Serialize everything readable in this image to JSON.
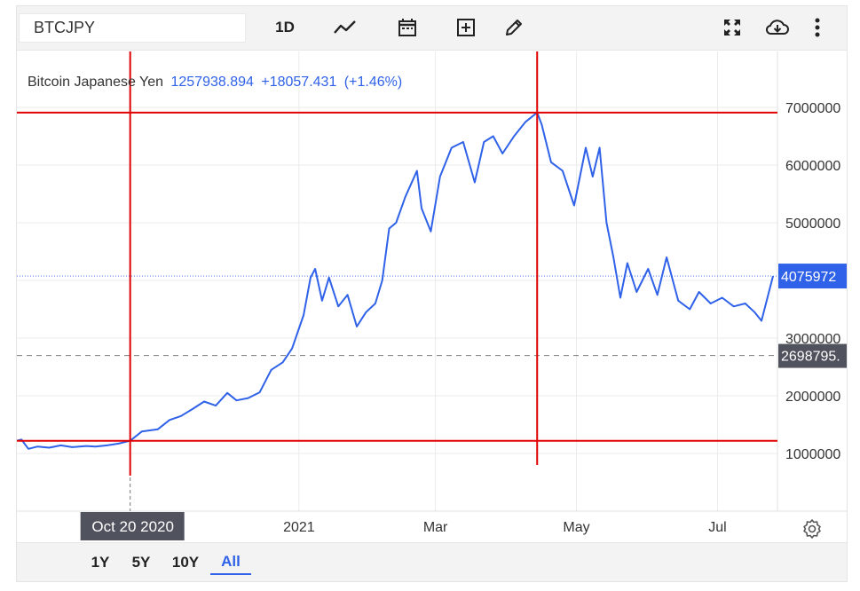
{
  "toolbar": {
    "symbol": "BTCJPY",
    "interval_label": "1D",
    "icons": [
      "line-chart-icon",
      "calendar-icon",
      "add-box-icon",
      "pencil-icon",
      "fullscreen-icon",
      "cloud-download-icon",
      "more-vertical-icon"
    ]
  },
  "legend": {
    "name": "Bitcoin Japanese Yen",
    "price": "1257938.894",
    "change": "+18057.431",
    "change_pct": "(+1.46%)"
  },
  "range_bar": {
    "buttons": [
      "1Y",
      "5Y",
      "10Y",
      "All"
    ],
    "active": "All"
  },
  "colors": {
    "series": "#2f62e8",
    "crosshair": "#e00000",
    "last_label_bg": "#2f62e8",
    "ref_label_bg": "#50535e"
  },
  "chart_data": {
    "type": "line",
    "y_ticks": [
      1000000,
      2000000,
      3000000,
      4000000,
      5000000,
      6000000,
      7000000
    ],
    "y_tick_labels": [
      "1000000",
      "2000000",
      "3000000",
      "4000000",
      "5000000",
      "6000000",
      "7000000"
    ],
    "ylim": [
      0,
      8000000
    ],
    "x_tick_labels": [
      "2021",
      "Mar",
      "May",
      "Jul"
    ],
    "x_ticks": [
      "2021-01-01",
      "2021-03-01",
      "2021-05-01",
      "2021-07-01"
    ],
    "xlim": [
      "2020-09-01",
      "2021-07-25"
    ],
    "crosshair_date_label": "Oct 20 2020",
    "crosshair_date": "2020-10-20",
    "last_value_label": "4075972",
    "last_value": 4075972,
    "ref_value_label": "2698795.",
    "ref_value": 2698795,
    "hlines": [
      1220000,
      6910000
    ],
    "vlines": [
      "2020-10-20",
      "2021-04-14"
    ],
    "grid": true,
    "series": [
      {
        "x": [
          "2020-09-01",
          "2020-09-03",
          "2020-09-06",
          "2020-09-10",
          "2020-09-15",
          "2020-09-20",
          "2020-09-25",
          "2020-10-01",
          "2020-10-05",
          "2020-10-10",
          "2020-10-15",
          "2020-10-20",
          "2020-10-25",
          "2020-11-01",
          "2020-11-06",
          "2020-11-11",
          "2020-11-16",
          "2020-11-21",
          "2020-11-26",
          "2020-12-01",
          "2020-12-05",
          "2020-12-10",
          "2020-12-15",
          "2020-12-20",
          "2020-12-25",
          "2020-12-29",
          "2021-01-03",
          "2021-01-06",
          "2021-01-08",
          "2021-01-11",
          "2021-01-14",
          "2021-01-18",
          "2021-01-22",
          "2021-01-26",
          "2021-01-30",
          "2021-02-03",
          "2021-02-06",
          "2021-02-09",
          "2021-02-12",
          "2021-02-16",
          "2021-02-21",
          "2021-02-23",
          "2021-02-27",
          "2021-03-03",
          "2021-03-08",
          "2021-03-13",
          "2021-03-18",
          "2021-03-22",
          "2021-03-26",
          "2021-03-30",
          "2021-04-04",
          "2021-04-09",
          "2021-04-14",
          "2021-04-16",
          "2021-04-20",
          "2021-04-25",
          "2021-04-30",
          "2021-05-05",
          "2021-05-08",
          "2021-05-11",
          "2021-05-14",
          "2021-05-17",
          "2021-05-20",
          "2021-05-23",
          "2021-05-27",
          "2021-06-01",
          "2021-06-05",
          "2021-06-09",
          "2021-06-14",
          "2021-06-19",
          "2021-06-23",
          "2021-06-28",
          "2021-07-03",
          "2021-07-08",
          "2021-07-13",
          "2021-07-17",
          "2021-07-20",
          "2021-07-25"
        ],
        "y": [
          1220000,
          1240000,
          1080000,
          1120000,
          1100000,
          1140000,
          1110000,
          1130000,
          1120000,
          1140000,
          1170000,
          1220000,
          1380000,
          1420000,
          1580000,
          1650000,
          1770000,
          1900000,
          1830000,
          2050000,
          1920000,
          1960000,
          2060000,
          2450000,
          2580000,
          2820000,
          3400000,
          4050000,
          4200000,
          3650000,
          4050000,
          3550000,
          3750000,
          3200000,
          3450000,
          3600000,
          4000000,
          4900000,
          5000000,
          5450000,
          5900000,
          5250000,
          4850000,
          5800000,
          6300000,
          6400000,
          5700000,
          6400000,
          6500000,
          6200000,
          6500000,
          6750000,
          6910000,
          6700000,
          6050000,
          5900000,
          5300000,
          6300000,
          5800000,
          6300000,
          5000000,
          4400000,
          3700000,
          4300000,
          3800000,
          4200000,
          3750000,
          4400000,
          3650000,
          3500000,
          3800000,
          3600000,
          3700000,
          3550000,
          3600000,
          3450000,
          3300000,
          4075972
        ]
      }
    ]
  }
}
